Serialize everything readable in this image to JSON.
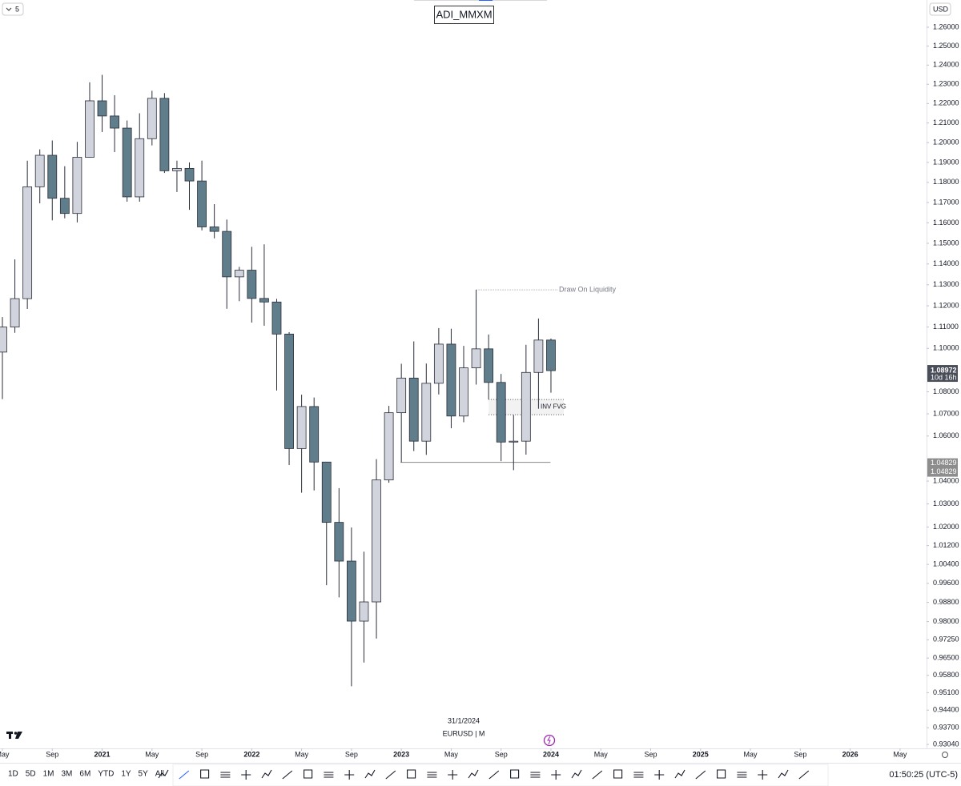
{
  "chart_data": {
    "type": "candlestick",
    "title": "ADI_MMXM",
    "symbol": "EURUSD | M",
    "cursor_date": "31/1/2024",
    "currency": "USD",
    "layout_count": "5",
    "x": [
      "2020-05",
      "2020-06",
      "2020-07",
      "2020-08",
      "2020-09",
      "2020-10",
      "2020-11",
      "2020-12",
      "2021-01",
      "2021-02",
      "2021-03",
      "2021-04",
      "2021-05",
      "2021-06",
      "2021-07",
      "2021-08",
      "2021-09",
      "2021-10",
      "2021-11",
      "2021-12",
      "2022-01",
      "2022-02",
      "2022-03",
      "2022-04",
      "2022-05",
      "2022-06",
      "2022-07",
      "2022-08",
      "2022-09",
      "2022-10",
      "2022-11",
      "2022-12",
      "2023-01",
      "2023-02",
      "2023-03",
      "2023-04",
      "2023-05",
      "2023-06",
      "2023-07",
      "2023-08",
      "2023-09",
      "2023-10",
      "2023-11",
      "2023-12",
      "2024-01"
    ],
    "open": [
      1.0983,
      1.11,
      1.1234,
      1.1778,
      1.1936,
      1.1721,
      1.1646,
      1.1926,
      1.2214,
      1.2136,
      1.2074,
      1.1728,
      1.202,
      1.2227,
      1.1858,
      1.187,
      1.1807,
      1.158,
      1.1558,
      1.1338,
      1.137,
      1.1235,
      1.1218,
      1.1067,
      1.0544,
      1.0733,
      1.0484,
      1.022,
      1.0054,
      0.9802,
      0.9882,
      1.0405,
      1.0705,
      1.0863,
      1.0577,
      1.0839,
      1.102,
      1.069,
      1.091,
      1.0998,
      1.0843,
      1.0573,
      1.0577,
      1.0889,
      1.1039
    ],
    "high": [
      1.1147,
      1.1422,
      1.1909,
      1.1966,
      1.2011,
      1.1881,
      1.2004,
      1.231,
      1.2349,
      1.2243,
      1.2113,
      1.215,
      1.2266,
      1.2254,
      1.1909,
      1.19,
      1.1909,
      1.1692,
      1.1616,
      1.1386,
      1.1483,
      1.1495,
      1.1233,
      1.1076,
      1.0787,
      1.0774,
      1.0485,
      1.0369,
      1.0198,
      1.0094,
      1.0497,
      1.0736,
      1.0929,
      1.1033,
      1.093,
      1.1095,
      1.1092,
      1.1012,
      1.1276,
      1.1065,
      1.0882,
      1.0695,
      1.1017,
      1.114,
      1.1046
    ],
    "low": [
      1.0767,
      1.1073,
      1.1185,
      1.1696,
      1.1612,
      1.1622,
      1.1602,
      1.1925,
      1.2054,
      1.1952,
      1.1704,
      1.1704,
      1.1986,
      1.1847,
      1.1752,
      1.1664,
      1.1563,
      1.1524,
      1.1186,
      1.1222,
      1.1121,
      1.1106,
      1.0806,
      1.0471,
      1.0349,
      1.0359,
      0.9952,
      0.9901,
      0.9536,
      0.9632,
      0.973,
      1.0393,
      1.0483,
      1.0533,
      1.0516,
      1.0788,
      1.0635,
      1.0662,
      1.0833,
      1.0766,
      1.0488,
      1.0448,
      1.0517,
      1.0723,
      1.0796
    ],
    "close": [
      1.11,
      1.1234,
      1.1778,
      1.1936,
      1.1721,
      1.1646,
      1.1926,
      1.2214,
      1.2136,
      1.2074,
      1.1728,
      1.202,
      1.2227,
      1.1858,
      1.187,
      1.1807,
      1.158,
      1.1558,
      1.1338,
      1.137,
      1.1235,
      1.1218,
      1.1067,
      1.0544,
      1.0733,
      1.0484,
      1.022,
      1.0054,
      0.9802,
      0.9882,
      1.0405,
      1.0705,
      1.0863,
      1.0577,
      1.0839,
      1.102,
      1.069,
      1.091,
      1.0998,
      1.0843,
      1.0573,
      1.0577,
      1.0889,
      1.1039,
      1.08972
    ],
    "up_color": "#d1d4dc",
    "down_color": "#607d8b",
    "border_color": "#2a2e39",
    "log_scale": true,
    "ylim": [
      0.9298,
      1.2746
    ],
    "yticks": [
      {
        "value": 1.26,
        "label": "1.26000"
      },
      {
        "value": 1.25,
        "label": "1.25000"
      },
      {
        "value": 1.24,
        "label": "1.24000"
      },
      {
        "value": 1.23,
        "label": "1.23000"
      },
      {
        "value": 1.22,
        "label": "1.22000"
      },
      {
        "value": 1.21,
        "label": "1.21000"
      },
      {
        "value": 1.2,
        "label": "1.20000"
      },
      {
        "value": 1.19,
        "label": "1.19000"
      },
      {
        "value": 1.18,
        "label": "1.18000"
      },
      {
        "value": 1.17,
        "label": "1.17000"
      },
      {
        "value": 1.16,
        "label": "1.16000"
      },
      {
        "value": 1.15,
        "label": "1.15000"
      },
      {
        "value": 1.14,
        "label": "1.14000"
      },
      {
        "value": 1.13,
        "label": "1.13000"
      },
      {
        "value": 1.12,
        "label": "1.12000"
      },
      {
        "value": 1.11,
        "label": "1.11000"
      },
      {
        "value": 1.1,
        "label": "1.10000"
      },
      {
        "value": 1.08,
        "label": "1.08000"
      },
      {
        "value": 1.07,
        "label": "1.07000"
      },
      {
        "value": 1.06,
        "label": "1.06000"
      },
      {
        "value": 1.04,
        "label": "1.04000"
      },
      {
        "value": 1.03,
        "label": "1.03000"
      },
      {
        "value": 1.02,
        "label": "1.02000"
      },
      {
        "value": 1.012,
        "label": "1.01200"
      },
      {
        "value": 1.004,
        "label": "1.00400"
      },
      {
        "value": 0.996,
        "label": "0.99600"
      },
      {
        "value": 0.988,
        "label": "0.98800"
      },
      {
        "value": 0.98,
        "label": "0.98000"
      },
      {
        "value": 0.9725,
        "label": "0.97250"
      },
      {
        "value": 0.965,
        "label": "0.96500"
      },
      {
        "value": 0.958,
        "label": "0.95800"
      },
      {
        "value": 0.951,
        "label": "0.95100"
      },
      {
        "value": 0.944,
        "label": "0.94400"
      },
      {
        "value": 0.937,
        "label": "0.93700"
      },
      {
        "value": 0.9304,
        "label": "0.93040"
      }
    ],
    "xlim": [
      "2020-05",
      "2026-07"
    ],
    "xticks": [
      {
        "value": "2020-05",
        "label": "May"
      },
      {
        "value": "2020-09",
        "label": "Sep"
      },
      {
        "value": "2021-01",
        "label": "2021"
      },
      {
        "value": "2021-05",
        "label": "May"
      },
      {
        "value": "2021-09",
        "label": "Sep"
      },
      {
        "value": "2022-01",
        "label": "2022"
      },
      {
        "value": "2022-05",
        "label": "May"
      },
      {
        "value": "2022-09",
        "label": "Sep"
      },
      {
        "value": "2023-01",
        "label": "2023"
      },
      {
        "value": "2023-05",
        "label": "May"
      },
      {
        "value": "2023-09",
        "label": "Sep"
      },
      {
        "value": "2024-01",
        "label": "2024"
      },
      {
        "value": "2024-05",
        "label": "May"
      },
      {
        "value": "2024-09",
        "label": "Sep"
      },
      {
        "value": "2025-01",
        "label": "2025"
      },
      {
        "value": "2025-05",
        "label": "May"
      },
      {
        "value": "2025-09",
        "label": "Sep"
      },
      {
        "value": "2026-01",
        "label": "2026"
      },
      {
        "value": "2026-05",
        "label": "May"
      }
    ],
    "last_price": 1.08972,
    "countdown": "10d 16h",
    "liquidity": {
      "text": "Draw On Liquidity",
      "price": 1.1276,
      "from": "2023-07",
      "to": "2024-01"
    },
    "fvg": {
      "text": "INV FVG",
      "top": 1.0765,
      "bottom": 1.0696,
      "from": "2023-08",
      "to": "2024-01"
    },
    "level": {
      "price": 1.04829,
      "from": "2023-01",
      "to": "2023-12"
    }
  },
  "toolbar": {
    "intervals": [
      "1D",
      "5D",
      "1M",
      "3M",
      "6M",
      "YTD",
      "1Y",
      "5Y",
      "All"
    ],
    "clock": "01:50:25 (UTC-5)"
  }
}
